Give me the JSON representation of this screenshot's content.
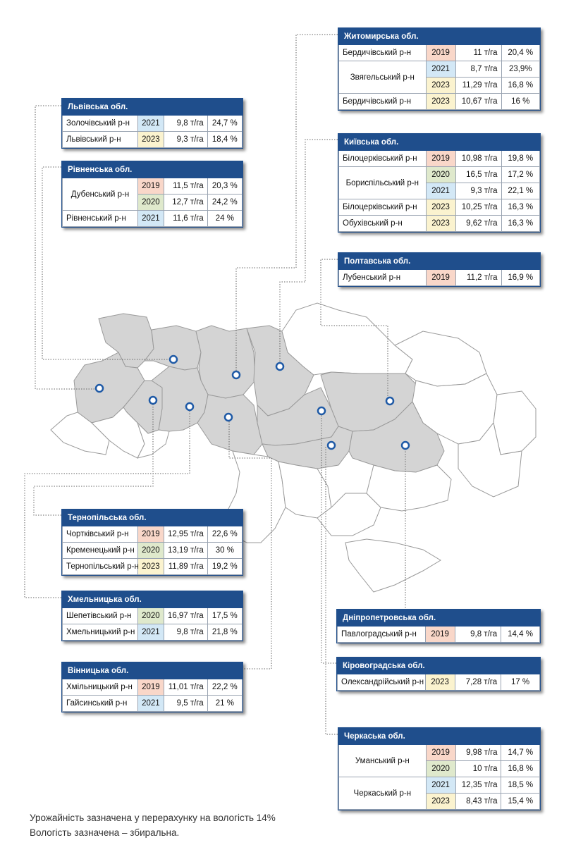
{
  "colors": {
    "header": "#1f4e8c",
    "y2019": "#f9d7c9",
    "y2020": "#dfe9cc",
    "y2021": "#d3e8f6",
    "y2023": "#fbf3cf",
    "highlight": "#d4d4d4",
    "marker": "#1f5aa6"
  },
  "panels": {
    "lviv": {
      "title": "Львівська обл.",
      "rows": [
        {
          "district": "Золочівський р-н",
          "year": "2021",
          "yield": "9,8 т/га",
          "humidity": "24,7 %"
        },
        {
          "district": "Львівський р-н",
          "year": "2023",
          "yield": "9,3 т/га",
          "humidity": "18,4 %"
        }
      ]
    },
    "rivne": {
      "title": "Рівненська обл.",
      "rows": [
        {
          "district": "Дубенський р-н",
          "year": "2019",
          "yield": "11,5 т/га",
          "humidity": "20,3 %"
        },
        {
          "district": "",
          "year": "2020",
          "yield": "12,7 т/га",
          "humidity": "24,2 %"
        },
        {
          "district": "Рівненський р-н",
          "year": "2021",
          "yield": "11,6 т/га",
          "humidity": "24 %"
        }
      ]
    },
    "zhytomyr": {
      "title": "Житомирська обл.",
      "rows": [
        {
          "district": "Бердичівський р-н",
          "year": "2019",
          "yield": "11 т/га",
          "humidity": "20,4 %"
        },
        {
          "district": "Звягельський р-н",
          "year": "2021",
          "yield": "8,7 т/га",
          "humidity": "23,9%"
        },
        {
          "district": "",
          "year": "2023",
          "yield": "11,29 т/га",
          "humidity": "16,8 %"
        },
        {
          "district": "Бердичівський р-н",
          "year": "2023",
          "yield": "10,67 т/га",
          "humidity": "16 %"
        }
      ]
    },
    "kyiv": {
      "title": "Київська обл.",
      "rows": [
        {
          "district": "Білоцерківський р-н",
          "year": "2019",
          "yield": "10,98 т/га",
          "humidity": "19,8 %"
        },
        {
          "district": "Бориспільський р-н",
          "year": "2020",
          "yield": "16,5 т/га",
          "humidity": "17,2 %"
        },
        {
          "district": "",
          "year": "2021",
          "yield": "9,3 т/га",
          "humidity": "22,1 %"
        },
        {
          "district": "Білоцерківський р-н",
          "year": "2023",
          "yield": "10,25 т/га",
          "humidity": "16,3 %"
        },
        {
          "district": "Обухівський р-н",
          "year": "2023",
          "yield": "9,62 т/га",
          "humidity": "16,3 %"
        }
      ]
    },
    "poltava": {
      "title": "Полтавська обл.",
      "rows": [
        {
          "district": "Лубенський р-н",
          "year": "2019",
          "yield": "11,2 т/га",
          "humidity": "16,9 %"
        }
      ]
    },
    "ternopil": {
      "title": "Тернопільська обл.",
      "rows": [
        {
          "district": "Чортківський р-н",
          "year": "2019",
          "yield": "12,95 т/га",
          "humidity": "22,6 %"
        },
        {
          "district": "Кременецький р-н",
          "year": "2020",
          "yield": "13,19 т/га",
          "humidity": "30 %"
        },
        {
          "district": "Тернопільський р-н",
          "year": "2023",
          "yield": "11,89 т/га",
          "humidity": "19,2 %"
        }
      ]
    },
    "khmelnytskyi": {
      "title": "Хмельницька обл.",
      "rows": [
        {
          "district": "Шепетівський р-н",
          "year": "2020",
          "yield": "16,97 т/га",
          "humidity": "17,5 %"
        },
        {
          "district": "Хмельницький р-н",
          "year": "2021",
          "yield": "9,8 т/га",
          "humidity": "21,8 %"
        }
      ]
    },
    "vinnytsia": {
      "title": "Вінницька обл.",
      "rows": [
        {
          "district": "Хмільницький р-н",
          "year": "2019",
          "yield": "11,01 т/га",
          "humidity": "22,2 %"
        },
        {
          "district": "Гайсинський р-н",
          "year": "2021",
          "yield": "9,5 т/га",
          "humidity": "21 %"
        }
      ]
    },
    "dnipro": {
      "title": "Дніпропетровська обл.",
      "rows": [
        {
          "district": "Павлоградський р-н",
          "year": "2019",
          "yield": "9,8 т/га",
          "humidity": "14,4 %"
        }
      ]
    },
    "kirovohrad": {
      "title": "Кіровоградська обл.",
      "rows": [
        {
          "district": "Олександрійський р-н",
          "year": "2023",
          "yield": "7,28 т/га",
          "humidity": "17 %"
        }
      ]
    },
    "cherkasy": {
      "title": "Черкаська обл.",
      "rows": [
        {
          "district": "Уманський р-н",
          "year": "2019",
          "yield": "9,98 т/га",
          "humidity": "14,7 %"
        },
        {
          "district": "",
          "year": "2020",
          "yield": "10 т/га",
          "humidity": "16,8 %"
        },
        {
          "district": "Черкаський р-н",
          "year": "2021",
          "yield": "12,35 т/га",
          "humidity": "18,5 %"
        },
        {
          "district": "",
          "year": "2023",
          "yield": "8,43 т/га",
          "humidity": "15,4 %"
        }
      ]
    }
  },
  "footnote": {
    "line1": "Урожайність зазначена у перерахунку на вологість 14%",
    "line2": "Вологість зазначена – збиральна."
  }
}
